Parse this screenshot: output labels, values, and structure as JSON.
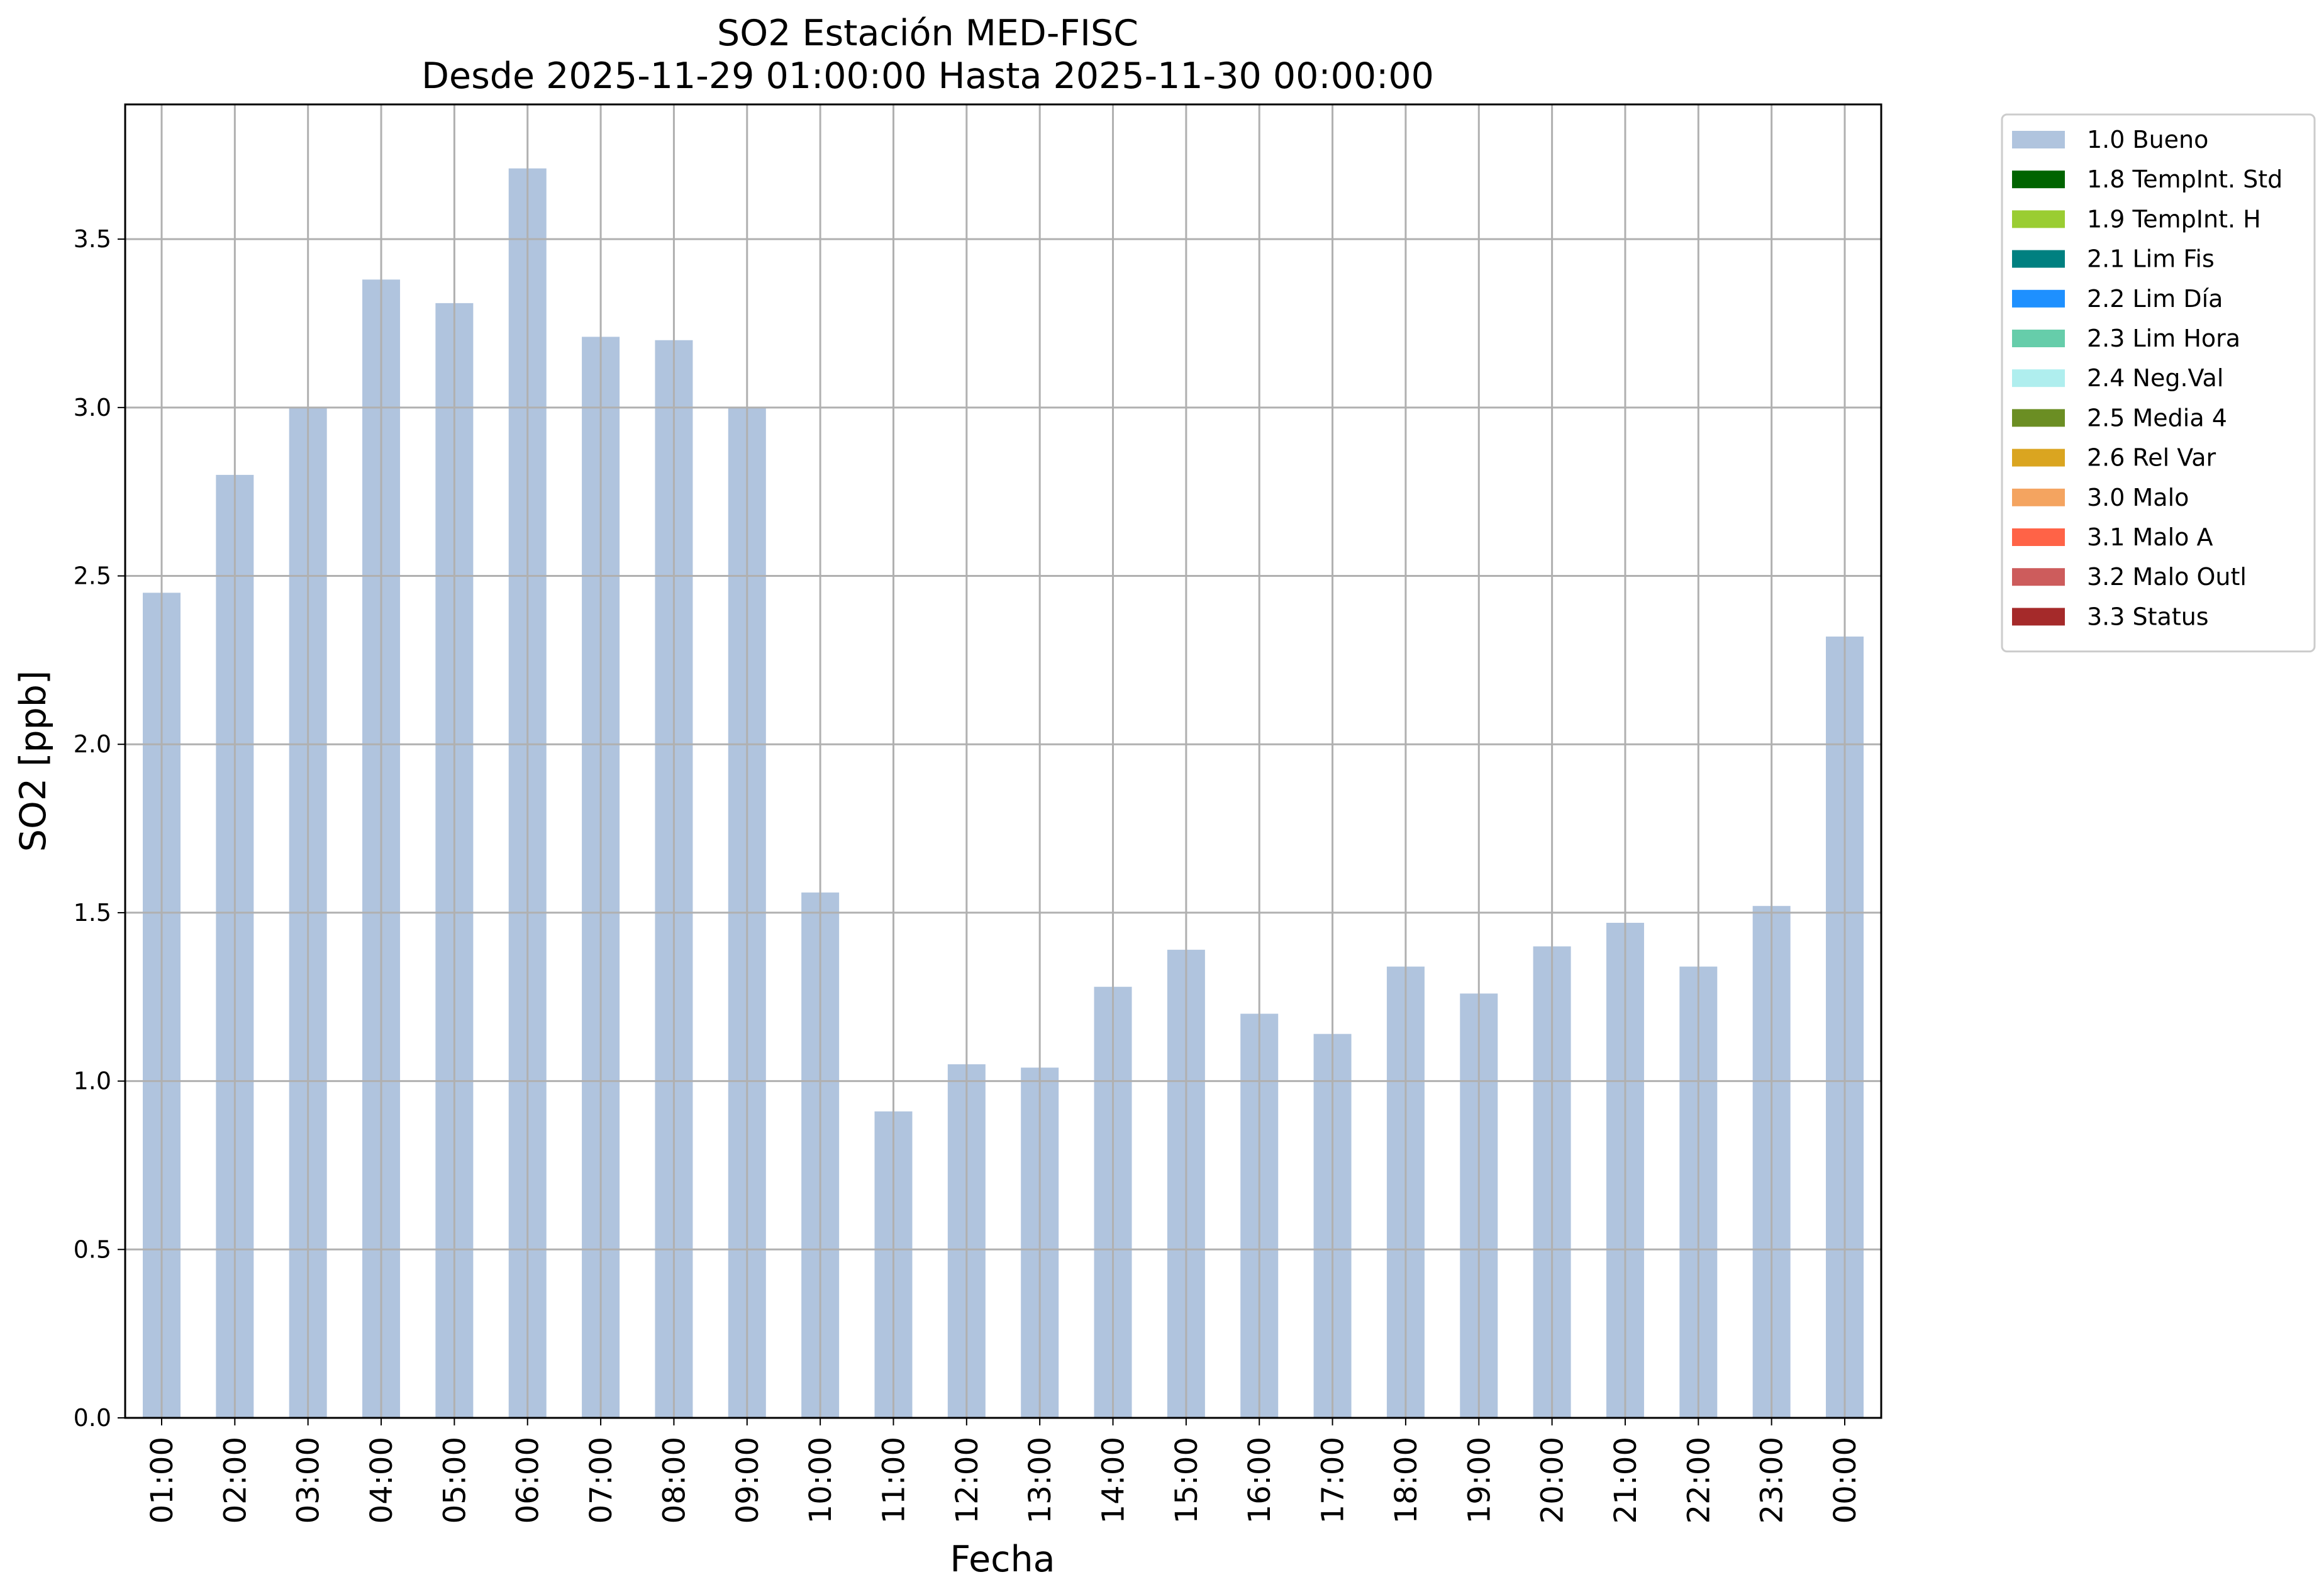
{
  "chart_data": {
    "type": "bar",
    "title": "SO2 Estación MED-FISC",
    "subtitle": "Desde 2025-11-29 01:00:00 Hasta 2025-11-30 00:00:00",
    "xlabel": "Fecha",
    "ylabel": "SO2 [ppb]",
    "ylim": [
      0,
      3.9
    ],
    "yticks": [
      "0.0",
      "0.5",
      "1.0",
      "1.5",
      "2.0",
      "2.5",
      "3.0",
      "3.5"
    ],
    "grid": true,
    "legend_position": "outside-top-right",
    "categories": [
      "01:00",
      "02:00",
      "03:00",
      "04:00",
      "05:00",
      "06:00",
      "07:00",
      "08:00",
      "09:00",
      "10:00",
      "11:00",
      "12:00",
      "13:00",
      "14:00",
      "15:00",
      "16:00",
      "17:00",
      "18:00",
      "19:00",
      "20:00",
      "21:00",
      "22:00",
      "23:00",
      "00:00"
    ],
    "series": [
      {
        "name": "1.0 Bueno",
        "color": "#b0c4de",
        "values": [
          2.45,
          2.8,
          3.0,
          3.38,
          3.31,
          3.71,
          3.21,
          3.2,
          3.0,
          1.56,
          0.91,
          1.05,
          1.04,
          1.28,
          1.39,
          1.2,
          1.14,
          1.34,
          1.26,
          1.4,
          1.47,
          1.34,
          1.52,
          2.32
        ]
      }
    ],
    "legend": [
      {
        "label": "1.0 Bueno",
        "color": "#b0c4de"
      },
      {
        "label": "1.8 TempInt. Std",
        "color": "#006400"
      },
      {
        "label": "1.9 TempInt. H",
        "color": "#9acd32"
      },
      {
        "label": "2.1 Lim Fis",
        "color": "#008080"
      },
      {
        "label": "2.2 Lim Día",
        "color": "#1e90ff"
      },
      {
        "label": "2.3 Lim Hora",
        "color": "#66cdaa"
      },
      {
        "label": "2.4 Neg.Val",
        "color": "#afeeee"
      },
      {
        "label": "2.5 Media 4",
        "color": "#6b8e23"
      },
      {
        "label": "2.6 Rel Var",
        "color": "#daa520"
      },
      {
        "label": "3.0 Malo",
        "color": "#f4a460"
      },
      {
        "label": "3.1 Malo A",
        "color": "#ff6347"
      },
      {
        "label": "3.2 Malo Outl",
        "color": "#cd5c5c"
      },
      {
        "label": "3.3 Status",
        "color": "#a52a2a"
      }
    ]
  }
}
